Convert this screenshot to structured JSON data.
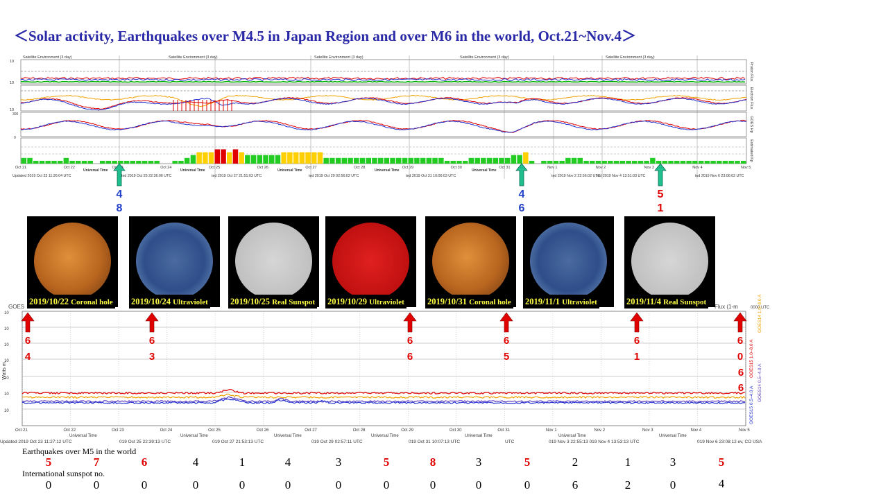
{
  "title": "＜Solar activity, Earthquakes over M4.5 in Japan Region and over M6 in the world, Oct.21~Nov.4＞",
  "colors": {
    "title": "#2a2aa8",
    "red": "#e00000",
    "green_arrow": "#1fbf8f",
    "xray_arrow": "#e00000"
  },
  "top_panel": {
    "panel_header": "Satellite Environment (3 day)",
    "right_labels": [
      "Proton Flux",
      "Electron Flux",
      "GOES Hp",
      "Estimated Kp"
    ],
    "dates": [
      "Oct 21",
      "Oct 22",
      "Oct 23",
      "Oct 24",
      "Oct 25",
      "Oct 26",
      "Oct 27",
      "Oct 28",
      "Oct 29",
      "Oct 30",
      "Oct 31",
      "Nov 1",
      "Nov 2",
      "Nov 3",
      "Nov 4",
      "Nov 5"
    ],
    "universal_time_label": "Universal Time",
    "updated": [
      "Updated 2019 Oct 23 11:26:04 UTC",
      "ted 2019 Oct 25 22:36:06 UTC",
      "ted 2019 Oct 27 21:51:03 UTC",
      "ted 2019 Oct 29 02:56:02 UTC",
      "ted 2019 Oct 31 10:06:03 UTC",
      "ted 2019 Nov 2 22:56:02 UTC",
      "ted 2019 Nov 4 13:51:03 UTC",
      "ted 2019 Nov 6 23:06:02 UTC"
    ]
  },
  "japan_eq_markers": [
    {
      "top": "4",
      "bottom": "8"
    },
    {
      "top": "4",
      "bottom": "6"
    },
    {
      "top": "5",
      "bottom": "1"
    }
  ],
  "sun_images": [
    {
      "date": "2019/10/22",
      "kind": "Coronal hole"
    },
    {
      "date": "2019/10/24",
      "kind": "Ultraviolet"
    },
    {
      "date": "2019/10/25",
      "kind": "Real Sunspot"
    },
    {
      "date": "2019/10/29",
      "kind": "Ultraviolet"
    },
    {
      "date": "2019/10/31",
      "kind": "Coronal hole"
    },
    {
      "date": "2019/11/1",
      "kind": "Ultraviolet"
    },
    {
      "date": "2019/11/4",
      "kind": "Real Sunspot"
    }
  ],
  "xray_panel": {
    "header_left": "GOES",
    "header_right": "Flux (1-m",
    "header_far_right": "0000 UTC",
    "ylabel": "Watts m",
    "legend": [
      "GOES15 1.0–8.0 A",
      "GOES14 1.0–8.0 A",
      "GOES15 0.5–4.0 A",
      "GOES14 0.5–4.0 A"
    ],
    "dates": [
      "Oct 21",
      "Oct 22",
      "Oct 23",
      "Oct 24",
      "Oct 25",
      "Oct 26",
      "Oct 27",
      "Oct 28",
      "Oct 29",
      "Oct 30",
      "Oct 31",
      "Nov 1",
      "Nov 2",
      "Nov 3",
      "Nov 4",
      "Nov 5"
    ],
    "universal_time_label": "Universal Time",
    "updated": [
      "Updated 2019 Oct 23 11:27:12 UTC",
      "019 Oct 25 22:39:13 UTC",
      "019 Oct 27 21:53:13 UTC",
      "019 Oct 29 02:57:11 UTC",
      "019 Oct 31 10:07:13 UTC",
      "UTC",
      "019 Nov 3 22:55:13 019 Nov 4 13:53:13 UTC",
      "019 Nov 6 23:08:12 ev, CO USA"
    ]
  },
  "world_eq_markers": [
    {
      "top": "6",
      "bottom": "4"
    },
    {
      "top": "6",
      "bottom": "3"
    },
    {
      "top": "6",
      "bottom": "6"
    },
    {
      "top": "6",
      "bottom": "5"
    },
    {
      "top": "6",
      "bottom": "1"
    },
    {
      "top": "6",
      "bottom": "0",
      "extra": [
        "6",
        "6"
      ]
    }
  ],
  "earthquakes_label": "Earthquakes over M5 in the world",
  "earthquake_counts": [
    "5",
    "7",
    "6",
    "4",
    "1",
    "4",
    "3",
    "5",
    "8",
    "3",
    "5",
    "2",
    "1",
    "3",
    "5"
  ],
  "earthquake_highlight": [
    true,
    true,
    true,
    false,
    false,
    false,
    false,
    true,
    true,
    false,
    true,
    false,
    false,
    false,
    true
  ],
  "sunspot_label": "International sunspot no.",
  "sunspot_numbers": [
    "0",
    "0",
    "0",
    "0",
    "0",
    "0",
    "0",
    "0",
    "0",
    "0",
    "0",
    "6",
    "2",
    "0",
    "4"
  ],
  "chart_data": [
    {
      "type": "bar",
      "title": "Estimated Kp",
      "categories": [
        "Oct 21",
        "Oct 22",
        "Oct 23",
        "Oct 24",
        "Oct 25",
        "Oct 26",
        "Oct 27",
        "Oct 28",
        "Oct 29",
        "Oct 30",
        "Oct 31",
        "Nov 1",
        "Nov 2",
        "Nov 3",
        "Nov 4"
      ],
      "values_3h": [
        [
          2,
          2,
          1,
          1,
          1,
          1,
          1,
          2
        ],
        [
          1,
          1,
          1,
          1,
          0,
          1,
          1,
          1
        ],
        [
          1,
          1,
          1,
          1,
          1,
          1,
          1,
          0
        ],
        [
          0,
          1,
          1,
          2,
          3,
          4,
          4,
          4
        ],
        [
          5,
          5,
          4,
          5,
          4,
          3,
          3,
          3
        ],
        [
          3,
          3,
          3,
          4,
          4,
          4,
          4,
          4
        ],
        [
          4,
          4,
          2,
          2,
          2,
          2,
          2,
          2
        ],
        [
          2,
          2,
          2,
          2,
          2,
          2,
          2,
          2
        ],
        [
          2,
          2,
          2,
          2,
          2,
          2,
          1,
          1
        ],
        [
          1,
          1,
          2,
          2,
          2,
          2,
          2,
          2
        ],
        [
          2,
          3,
          3,
          4,
          1,
          0,
          1,
          1
        ],
        [
          1,
          1,
          2,
          2,
          2,
          1,
          1,
          1
        ],
        [
          1,
          1,
          1,
          1,
          1,
          1,
          1,
          1
        ],
        [
          2,
          1,
          1,
          1,
          1,
          1,
          1,
          1
        ],
        [
          1,
          1,
          1,
          1,
          1,
          1,
          1,
          1
        ]
      ],
      "ylim": [
        0,
        9
      ]
    },
    {
      "type": "line",
      "title": "GOES X-ray Flux",
      "ylabel": "Watts m",
      "x": [
        "Oct 21",
        "Nov 5"
      ],
      "log_scale": true,
      "series": [
        {
          "name": "GOES15 1.0–8.0 A",
          "level": 1e-07
        },
        {
          "name": "GOES15 0.5–4.0 A",
          "level": 3e-08
        }
      ]
    }
  ]
}
